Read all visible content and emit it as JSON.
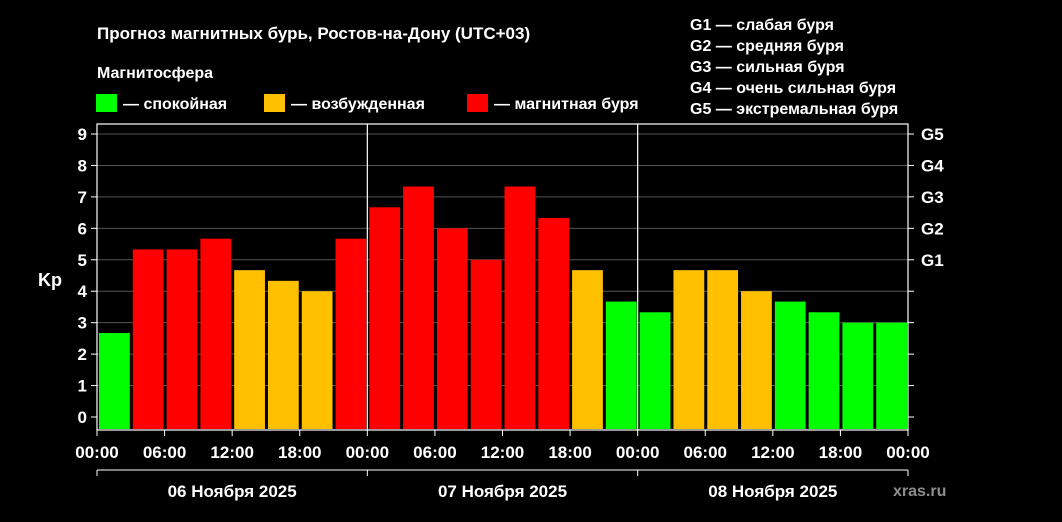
{
  "chart_data": {
    "type": "bar",
    "title": "Прогноз магнитных бурь, Ростов-на-Дону (UTC+03)",
    "ylabel": "Kp",
    "ylim": [
      0,
      9
    ],
    "y_ticks": [
      "0",
      "1",
      "2",
      "3",
      "4",
      "5",
      "6",
      "7",
      "8",
      "9"
    ],
    "right_ticks": [
      {
        "label": "G1",
        "value": 5
      },
      {
        "label": "G2",
        "value": 6
      },
      {
        "label": "G3",
        "value": 7
      },
      {
        "label": "G4",
        "value": 8
      },
      {
        "label": "G5",
        "value": 9
      }
    ],
    "x_tick_labels": [
      "00:00",
      "06:00",
      "12:00",
      "18:00",
      "00:00",
      "06:00",
      "12:00",
      "18:00",
      "00:00",
      "06:00",
      "12:00",
      "18:00",
      "00:00"
    ],
    "days": [
      "06 Ноября 2025",
      "07 Ноября 2025",
      "08 Ноября 2025"
    ],
    "values": [
      2.67,
      5.33,
      5.33,
      5.67,
      4.67,
      4.33,
      4.0,
      5.67,
      6.67,
      7.33,
      6.0,
      5.0,
      7.33,
      6.33,
      4.67,
      3.67,
      3.33,
      4.67,
      4.67,
      4.0,
      3.67,
      3.33,
      3.0,
      3.0
    ],
    "categories": [
      "calm",
      "storm",
      "storm",
      "storm",
      "excited",
      "excited",
      "excited",
      "storm",
      "storm",
      "storm",
      "storm",
      "storm",
      "storm",
      "storm",
      "excited",
      "calm",
      "calm",
      "excited",
      "excited",
      "excited",
      "calm",
      "calm",
      "calm",
      "calm"
    ],
    "legend": {
      "title": "Магнитосфера",
      "items": [
        {
          "key": "calm",
          "label": "— спокойная",
          "color": "#00ff00"
        },
        {
          "key": "excited",
          "label": "— возбужденная",
          "color": "#ffc000"
        },
        {
          "key": "storm",
          "label": "— магнитная буря",
          "color": "#ff0000"
        }
      ]
    },
    "storm_scale": [
      "G1 — слабая буря",
      "G2 — средняя буря",
      "G3 — сильная буря",
      "G4 — очень сильная буря",
      "G5 — экстремальная буря"
    ],
    "watermark": "xras.ru"
  }
}
